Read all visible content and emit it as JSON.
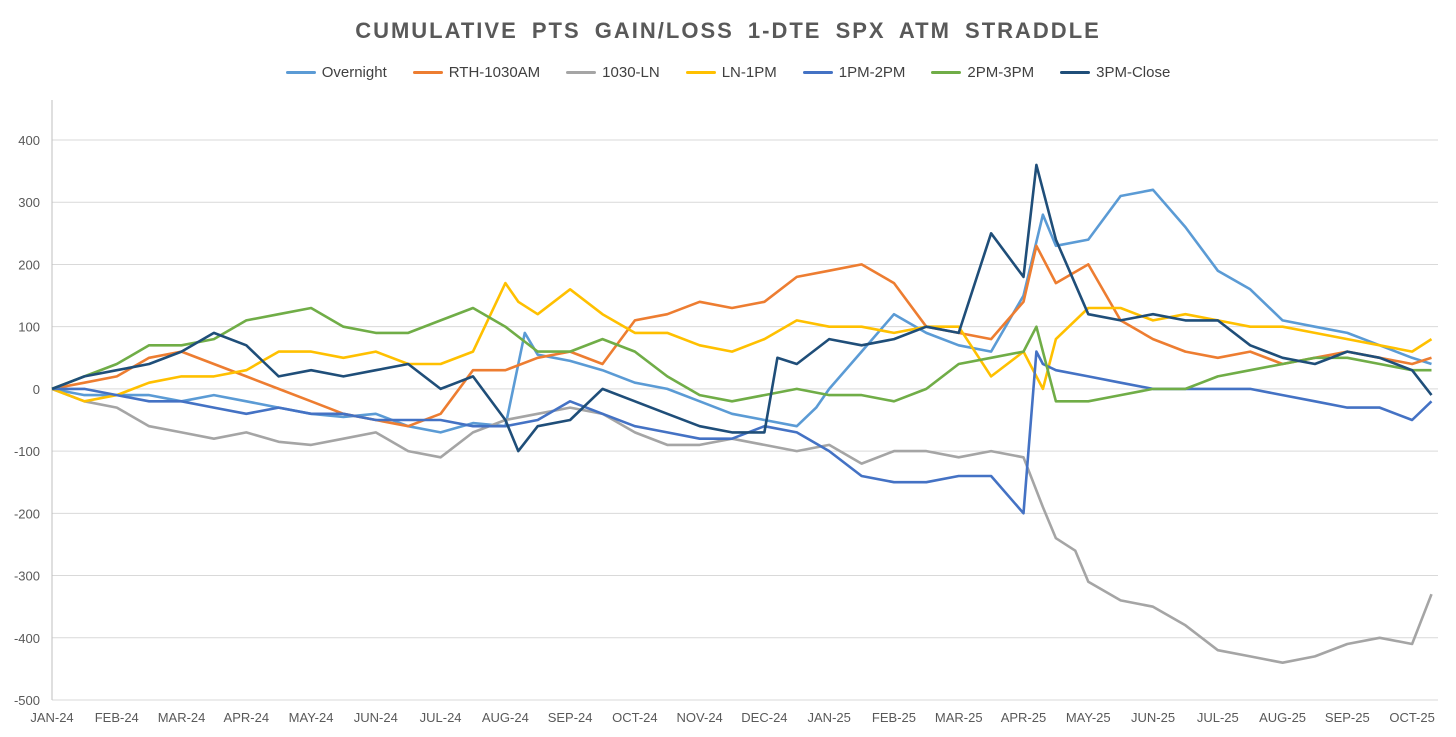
{
  "chart_data": {
    "type": "line",
    "title": "CUMULATIVE PTS GAIN/LOSS 1-DTE SPX ATM STRADDLE",
    "xlabel": "",
    "ylabel": "",
    "ylim": [
      -500,
      400
    ],
    "yticks": [
      "400",
      "300",
      "200",
      "100",
      "0",
      "-100",
      "-200",
      "-300",
      "-400",
      "-500"
    ],
    "xticks": [
      "JAN-24",
      "FEB-24",
      "MAR-24",
      "APR-24",
      "MAY-24",
      "JUN-24",
      "JUL-24",
      "AUG-24",
      "SEP-24",
      "OCT-24",
      "NOV-24",
      "DEC-24",
      "JAN-25",
      "FEB-25",
      "MAR-25",
      "APR-25",
      "MAY-25",
      "JUN-25",
      "JUL-25",
      "AUG-25",
      "SEP-25",
      "OCT-25"
    ],
    "grid": true,
    "legend_position": "top",
    "series": [
      {
        "name": "Overnight",
        "color": "#5B9BD5",
        "x": [
          0,
          0.5,
          1,
          1.5,
          2,
          2.5,
          3,
          3.5,
          4,
          4.5,
          5,
          5.5,
          6,
          6.5,
          7,
          7.3,
          7.5,
          8,
          8.5,
          9,
          9.5,
          10,
          10.5,
          11,
          11.5,
          11.8,
          12,
          12.5,
          13,
          13.5,
          14,
          14.5,
          15,
          15.3,
          15.5,
          16,
          16.5,
          17,
          17.5,
          18,
          18.5,
          19,
          19.5,
          20,
          20.5,
          21,
          21.3
        ],
        "y": [
          0,
          -10,
          -10,
          -10,
          -20,
          -10,
          -20,
          -30,
          -40,
          -45,
          -40,
          -60,
          -70,
          -55,
          -60,
          90,
          55,
          45,
          30,
          10,
          0,
          -20,
          -40,
          -50,
          -60,
          -30,
          0,
          60,
          120,
          90,
          70,
          60,
          150,
          280,
          230,
          240,
          310,
          320,
          260,
          190,
          160,
          110,
          100,
          90,
          70,
          50,
          40
        ]
      },
      {
        "name": "RTH-1030AM",
        "color": "#ED7D31",
        "x": [
          0,
          0.5,
          1,
          1.5,
          2,
          2.5,
          3,
          3.5,
          4,
          4.5,
          5,
          5.5,
          6,
          6.5,
          7,
          7.5,
          8,
          8.5,
          9,
          9.5,
          10,
          10.5,
          11,
          11.5,
          12,
          12.5,
          13,
          13.5,
          14,
          14.5,
          15,
          15.2,
          15.5,
          16,
          16.5,
          17,
          17.5,
          18,
          18.5,
          19,
          19.5,
          20,
          20.5,
          21,
          21.3
        ],
        "y": [
          0,
          10,
          20,
          50,
          60,
          40,
          20,
          0,
          -20,
          -40,
          -50,
          -60,
          -40,
          30,
          30,
          50,
          60,
          40,
          110,
          120,
          140,
          130,
          140,
          180,
          190,
          200,
          170,
          100,
          90,
          80,
          140,
          230,
          170,
          200,
          110,
          80,
          60,
          50,
          60,
          40,
          50,
          60,
          50,
          40,
          50
        ]
      },
      {
        "name": "1030-LN",
        "color": "#A5A5A5",
        "x": [
          0,
          0.5,
          1,
          1.5,
          2,
          2.5,
          3,
          3.5,
          4,
          4.5,
          5,
          5.5,
          6,
          6.5,
          7,
          7.5,
          8,
          8.5,
          9,
          9.5,
          10,
          10.5,
          11,
          11.5,
          12,
          12.5,
          13,
          13.5,
          14,
          14.5,
          15,
          15.3,
          15.5,
          15.8,
          16,
          16.5,
          17,
          17.5,
          18,
          18.5,
          19,
          19.5,
          20,
          20.5,
          21,
          21.3
        ],
        "y": [
          0,
          -20,
          -30,
          -60,
          -70,
          -80,
          -70,
          -85,
          -90,
          -80,
          -70,
          -100,
          -110,
          -70,
          -50,
          -40,
          -30,
          -40,
          -70,
          -90,
          -90,
          -80,
          -90,
          -100,
          -90,
          -120,
          -100,
          -100,
          -110,
          -100,
          -110,
          -190,
          -240,
          -260,
          -310,
          -340,
          -350,
          -380,
          -420,
          -430,
          -440,
          -430,
          -410,
          -400,
          -410,
          -330
        ]
      },
      {
        "name": "LN-1PM",
        "color": "#FFC000",
        "x": [
          0,
          0.5,
          1,
          1.5,
          2,
          2.5,
          3,
          3.5,
          4,
          4.5,
          5,
          5.5,
          6,
          6.5,
          7,
          7.2,
          7.5,
          8,
          8.5,
          9,
          9.5,
          10,
          10.5,
          11,
          11.5,
          12,
          12.5,
          13,
          13.5,
          14,
          14.5,
          15,
          15.3,
          15.5,
          16,
          16.5,
          17,
          17.5,
          18,
          18.5,
          19,
          19.5,
          20,
          20.5,
          21,
          21.3
        ],
        "y": [
          0,
          -20,
          -10,
          10,
          20,
          20,
          30,
          60,
          60,
          50,
          60,
          40,
          40,
          60,
          170,
          140,
          120,
          160,
          120,
          90,
          90,
          70,
          60,
          80,
          110,
          100,
          100,
          90,
          100,
          100,
          20,
          60,
          0,
          80,
          130,
          130,
          110,
          120,
          110,
          100,
          100,
          90,
          80,
          70,
          60,
          80
        ]
      },
      {
        "name": "1PM-2PM",
        "color": "#4472C4",
        "x": [
          0,
          0.5,
          1,
          1.5,
          2,
          2.5,
          3,
          3.5,
          4,
          4.5,
          5,
          5.5,
          6,
          6.5,
          7,
          7.5,
          8,
          8.5,
          9,
          9.5,
          10,
          10.5,
          11,
          11.5,
          12,
          12.5,
          13,
          13.5,
          14,
          14.5,
          15,
          15.2,
          15.3,
          15.5,
          16,
          16.5,
          17,
          17.5,
          18,
          18.5,
          19,
          19.5,
          20,
          20.5,
          21,
          21.3
        ],
        "y": [
          0,
          0,
          -10,
          -20,
          -20,
          -30,
          -40,
          -30,
          -40,
          -40,
          -50,
          -50,
          -50,
          -60,
          -60,
          -50,
          -20,
          -40,
          -60,
          -70,
          -80,
          -80,
          -60,
          -70,
          -100,
          -140,
          -150,
          -150,
          -140,
          -140,
          -200,
          60,
          40,
          30,
          20,
          10,
          0,
          0,
          0,
          0,
          -10,
          -20,
          -30,
          -30,
          -50,
          -20
        ]
      },
      {
        "name": "2PM-3PM",
        "color": "#70AD47",
        "x": [
          0,
          0.5,
          1,
          1.5,
          2,
          2.5,
          3,
          3.5,
          4,
          4.5,
          5,
          5.5,
          6,
          6.5,
          7,
          7.5,
          8,
          8.5,
          9,
          9.5,
          10,
          10.5,
          11,
          11.5,
          12,
          12.5,
          13,
          13.5,
          14,
          14.5,
          15,
          15.2,
          15.5,
          16,
          16.5,
          17,
          17.5,
          18,
          18.5,
          19,
          19.5,
          20,
          20.5,
          21,
          21.3
        ],
        "y": [
          0,
          20,
          40,
          70,
          70,
          80,
          110,
          120,
          130,
          100,
          90,
          90,
          110,
          130,
          100,
          60,
          60,
          80,
          60,
          20,
          -10,
          -20,
          -10,
          0,
          -10,
          -10,
          -20,
          0,
          40,
          50,
          60,
          100,
          -20,
          -20,
          -10,
          0,
          0,
          20,
          30,
          40,
          50,
          50,
          40,
          30,
          30
        ]
      },
      {
        "name": "3PM-Close",
        "color": "#1F4E79",
        "x": [
          0,
          0.5,
          1,
          1.5,
          2,
          2.5,
          3,
          3.3,
          3.5,
          4,
          4.5,
          5,
          5.5,
          6,
          6.5,
          7,
          7.2,
          7.5,
          8,
          8.5,
          9,
          9.5,
          10,
          10.5,
          11,
          11.2,
          11.5,
          12,
          12.5,
          13,
          13.5,
          14,
          14.5,
          15,
          15.2,
          15.5,
          16,
          16.5,
          17,
          17.5,
          18,
          18.5,
          19,
          19.5,
          20,
          20.5,
          21,
          21.3
        ],
        "y": [
          0,
          20,
          30,
          40,
          60,
          90,
          70,
          40,
          20,
          30,
          20,
          30,
          40,
          0,
          20,
          -50,
          -100,
          -60,
          -50,
          0,
          -20,
          -40,
          -60,
          -70,
          -70,
          50,
          40,
          80,
          70,
          80,
          100,
          90,
          250,
          180,
          360,
          240,
          120,
          110,
          120,
          110,
          110,
          70,
          50,
          40,
          60,
          50,
          30,
          -10
        ]
      }
    ]
  }
}
